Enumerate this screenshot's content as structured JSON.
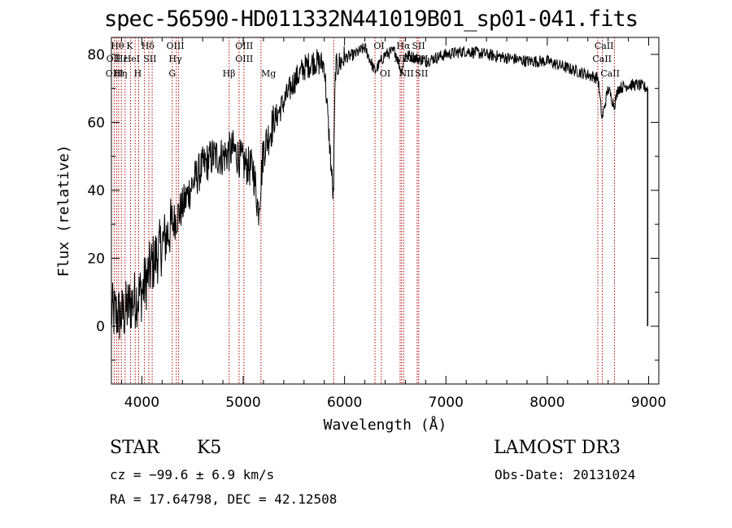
{
  "title": "spec-56590-HD011332N441019B01_sp01-041.fits",
  "chart_data": {
    "type": "line",
    "xlabel": "Wavelength (Å)",
    "ylabel": "Flux (relative)",
    "xlim": [
      3700,
      9100
    ],
    "ylim": [
      -17,
      85
    ],
    "xticks": [
      4000,
      5000,
      6000,
      7000,
      8000,
      9000
    ],
    "yticks": [
      0,
      20,
      40,
      60,
      80
    ],
    "x": [
      3700,
      3800,
      3900,
      4000,
      4100,
      4200,
      4300,
      4400,
      4500,
      4600,
      4700,
      4800,
      4900,
      5000,
      5100,
      5150,
      5200,
      5300,
      5400,
      5500,
      5600,
      5700,
      5800,
      5890,
      5900,
      5910,
      6000,
      6100,
      6200,
      6300,
      6400,
      6500,
      6560,
      6600,
      6700,
      6800,
      6900,
      7000,
      7200,
      7400,
      7600,
      7800,
      8000,
      8200,
      8400,
      8500,
      8540,
      8600,
      8660,
      8700,
      8800,
      8900,
      8990
    ],
    "values": [
      4,
      3,
      7,
      10,
      18,
      24,
      30,
      35,
      42,
      47,
      50,
      50,
      52,
      48,
      46,
      34,
      52,
      60,
      66,
      72,
      76,
      78,
      77,
      37,
      60,
      76,
      79,
      80,
      82,
      75,
      80,
      81,
      75,
      80,
      79,
      78,
      79,
      80,
      81,
      80,
      79,
      78,
      78,
      76,
      74,
      73,
      61,
      70,
      65,
      70,
      71,
      71,
      70
    ],
    "line_markers": {
      "upper_row1": [
        "Hθ",
        "K",
        "Hδ",
        "OIII",
        "OIII",
        "OI",
        "Hα",
        "SII",
        "CaII"
      ],
      "upper_row2": [
        "OII",
        "Hε",
        "HeI",
        "SII",
        "Hγ",
        "OIII",
        "NII",
        "NII",
        "SII",
        "CaII"
      ],
      "upper_row3": [
        "OIII",
        "Hη",
        "H",
        "G",
        "Hβ",
        "Mg",
        "OI",
        "NII",
        "SII",
        "CaII"
      ],
      "wavelengths": [
        3727,
        3750,
        3771,
        3798,
        3835,
        3889,
        3934,
        3969,
        4026,
        4069,
        4102,
        4300,
        4340,
        4363,
        4861,
        4959,
        5007,
        5175,
        5893,
        6300,
        6363,
        6548,
        6563,
        6583,
        6716,
        6731,
        8498,
        8542,
        8662
      ]
    }
  },
  "footer": {
    "object_class": "STAR",
    "subclass": "K5",
    "cz": "cz = −99.6 ± 6.9 km/s",
    "coords": "RA =  17.64798, DEC =  42.12508",
    "survey": "LAMOST DR3",
    "obs_date": "Obs-Date: 20131024"
  }
}
